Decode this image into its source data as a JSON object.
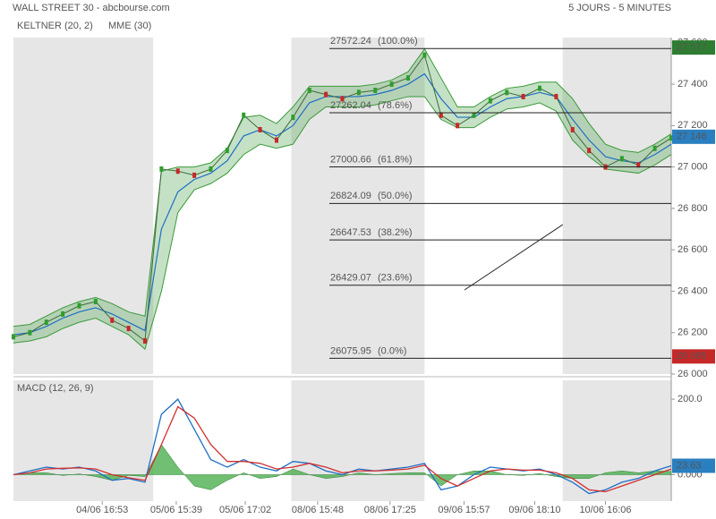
{
  "chart_data": [
    {
      "type": "line",
      "title": "WALL STREET 30 - abcbourse.com",
      "subtitle": "5 JOURS - 5 MINUTES",
      "xlim": [
        0,
        40
      ],
      "xticks": [
        {
          "value": 5.4,
          "label": "04/06 16:53"
        },
        {
          "value": 9.9,
          "label": "05/06 15:39"
        },
        {
          "value": 14.1,
          "label": "05/06 17:02"
        },
        {
          "value": 18.5,
          "label": "08/06 15:48"
        },
        {
          "value": 22.9,
          "label": "08/06 17:25"
        },
        {
          "value": 27.4,
          "label": "09/06 15:57"
        },
        {
          "value": 31.7,
          "label": "09/06 18:10"
        },
        {
          "value": 36.0,
          "label": "10/06 16:06"
        }
      ],
      "ylim": [
        26000,
        27625
      ],
      "yticks": [
        {
          "value": 26000,
          "label": "26 000"
        },
        {
          "value": 26200,
          "label": "26 200"
        },
        {
          "value": 26400,
          "label": "26 400"
        },
        {
          "value": 26600,
          "label": "26 600"
        },
        {
          "value": 26800,
          "label": "26 800"
        },
        {
          "value": 27000,
          "label": "27 000"
        },
        {
          "value": 27200,
          "label": "27 200"
        },
        {
          "value": 27400,
          "label": "27 400"
        },
        {
          "value": 27600,
          "label": "27 600"
        }
      ],
      "shaded": [
        [
          0,
          8.5
        ],
        [
          16.9,
          25
        ],
        [
          33.4,
          40
        ]
      ],
      "price": {
        "up_color": "#2e9e2e",
        "down_color": "#c62828",
        "color": "#3d6b3d",
        "values": [
          26180,
          26200,
          26250,
          26290,
          26330,
          26350,
          26260,
          26220,
          26160,
          26990,
          26980,
          26960,
          26990,
          27080,
          27250,
          27180,
          27130,
          27240,
          27370,
          27350,
          27330,
          27360,
          27370,
          27400,
          27430,
          27540,
          27250,
          27200,
          27250,
          27320,
          27360,
          27340,
          27380,
          27340,
          27180,
          27080,
          27000,
          27040,
          27010,
          27090,
          27140
        ]
      },
      "keltner": {
        "name": "KELTNER (20, 2)",
        "color": "#3a9a3a",
        "fill": "rgba(90,170,90,0.35)",
        "upper": [
          26230,
          26240,
          26280,
          26320,
          26350,
          26370,
          26340,
          26300,
          26280,
          26980,
          27000,
          27000,
          27020,
          27090,
          27240,
          27250,
          27210,
          27290,
          27390,
          27390,
          27390,
          27390,
          27400,
          27420,
          27460,
          27570,
          27430,
          27290,
          27290,
          27340,
          27380,
          27390,
          27410,
          27410,
          27330,
          27210,
          27110,
          27080,
          27070,
          27110,
          27160
        ],
        "lower": [
          26150,
          26160,
          26180,
          26220,
          26250,
          26270,
          26230,
          26190,
          26120,
          26400,
          26780,
          26890,
          26920,
          26970,
          27060,
          27110,
          27090,
          27110,
          27230,
          27290,
          27290,
          27290,
          27300,
          27320,
          27340,
          27340,
          27230,
          27190,
          27190,
          27240,
          27280,
          27290,
          27310,
          27270,
          27130,
          27050,
          26990,
          26980,
          26970,
          27010,
          27060
        ]
      },
      "mme": {
        "name": "MME (30)",
        "color": "#1f6fc5",
        "values": [
          26190,
          26200,
          26230,
          26270,
          26300,
          26320,
          26290,
          26250,
          26210,
          26700,
          26880,
          26940,
          26970,
          27030,
          27150,
          27180,
          27150,
          27200,
          27310,
          27340,
          27340,
          27340,
          27350,
          27370,
          27400,
          27450,
          27330,
          27240,
          27240,
          27290,
          27330,
          27340,
          27360,
          27340,
          27230,
          27130,
          27050,
          27030,
          27020,
          27060,
          27110
        ]
      },
      "fibonacci": [
        {
          "value": 27572.24,
          "label": "(100.0%)"
        },
        {
          "value": 27262.04,
          "label": "(78.6%)"
        },
        {
          "value": 27000.66,
          "label": "(61.8%)"
        },
        {
          "value": 26824.09,
          "label": "(50.0%)"
        },
        {
          "value": 26647.53,
          "label": "(38.2%)"
        },
        {
          "value": 26429.07,
          "label": "(23.6%)"
        },
        {
          "value": 26075.95,
          "label": "(0.0%)"
        }
      ],
      "last_labels": [
        {
          "value": 27577,
          "label": "27 577",
          "color": "#2e7d32"
        },
        {
          "value": 27146,
          "label": "27 146",
          "color": "#2a7fc0"
        },
        {
          "value": 26085,
          "label": "26 085",
          "color": "#c62828"
        }
      ]
    },
    {
      "type": "line",
      "title": "MACD (12, 26, 9)",
      "xlim": [
        0,
        40
      ],
      "ylim": [
        -70,
        250
      ],
      "yticks": [
        {
          "value": 0,
          "label": "0.000"
        },
        {
          "value": 200,
          "label": "200.0"
        }
      ],
      "series": [
        {
          "color": "#1f6fc5",
          "values": [
            0,
            10,
            20,
            15,
            20,
            10,
            -15,
            -10,
            -20,
            160,
            200,
            120,
            40,
            20,
            40,
            20,
            10,
            35,
            30,
            10,
            0,
            15,
            10,
            15,
            20,
            30,
            -40,
            -30,
            0,
            20,
            15,
            10,
            15,
            0,
            -20,
            -50,
            -40,
            -20,
            -10,
            10,
            23.63
          ]
        },
        {
          "color": "#d32f2f",
          "values": [
            0,
            5,
            15,
            17,
            18,
            15,
            0,
            -8,
            -15,
            80,
            180,
            150,
            80,
            35,
            35,
            30,
            15,
            20,
            30,
            20,
            5,
            10,
            10,
            12,
            15,
            25,
            -10,
            -30,
            -10,
            10,
            15,
            12,
            12,
            5,
            -10,
            -40,
            -45,
            -30,
            -15,
            0,
            15
          ]
        }
      ],
      "histogram": {
        "color": "#4caf50",
        "values": [
          0,
          5,
          5,
          -2,
          2,
          -5,
          -15,
          -2,
          -5,
          80,
          20,
          -30,
          -40,
          -15,
          5,
          -10,
          -5,
          15,
          0,
          -10,
          -5,
          5,
          0,
          3,
          5,
          5,
          -30,
          0,
          10,
          10,
          0,
          -2,
          3,
          -5,
          -10,
          -10,
          5,
          10,
          5,
          10,
          8.6
        ]
      },
      "last_label": {
        "value": 23.63,
        "color": "#2a7fc0"
      }
    }
  ]
}
